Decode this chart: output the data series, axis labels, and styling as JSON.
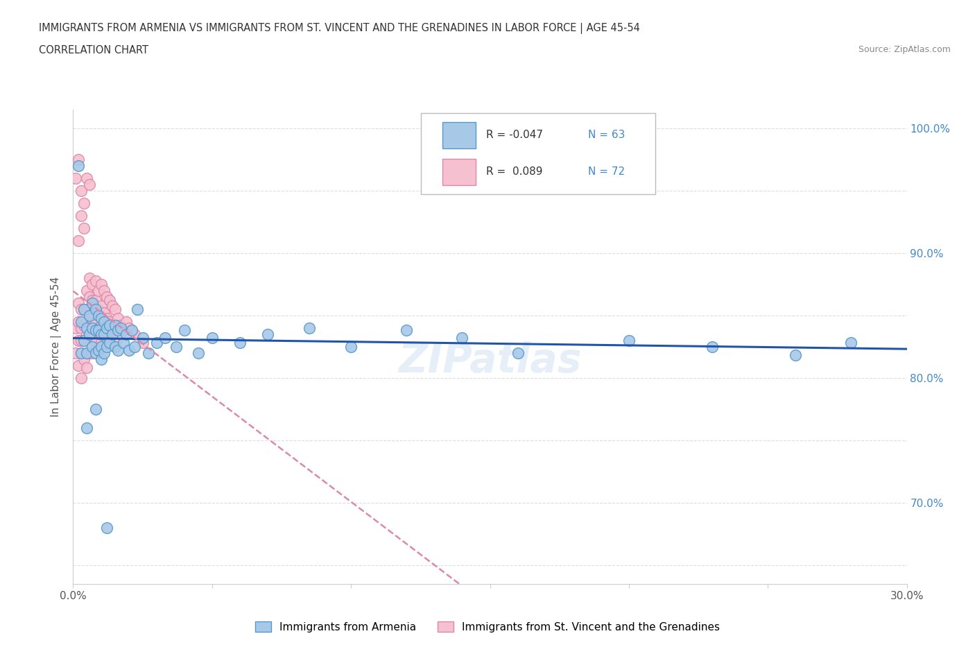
{
  "title_line1": "IMMIGRANTS FROM ARMENIA VS IMMIGRANTS FROM ST. VINCENT AND THE GRENADINES IN LABOR FORCE | AGE 45-54",
  "title_line2": "CORRELATION CHART",
  "source_text": "Source: ZipAtlas.com",
  "ylabel": "In Labor Force | Age 45-54",
  "xlim": [
    0.0,
    0.3
  ],
  "ylim": [
    0.635,
    1.015
  ],
  "xticks": [
    0.0,
    0.05,
    0.1,
    0.15,
    0.2,
    0.25,
    0.3
  ],
  "xticklabels": [
    "0.0%",
    "",
    "",
    "",
    "",
    "",
    "30.0%"
  ],
  "ytick_positions": [
    0.65,
    0.7,
    0.75,
    0.8,
    0.85,
    0.9,
    0.95,
    1.0
  ],
  "yticklabels_right": [
    "",
    "70.0%",
    "",
    "80.0%",
    "",
    "90.0%",
    "",
    "100.0%"
  ],
  "armenia_color": "#a8c8e8",
  "armenia_edge": "#5599cc",
  "stv_color": "#f5c0cf",
  "stv_edge": "#dd88aa",
  "trend_armenia_color": "#2255aa",
  "trend_stv_color": "#dd88aa",
  "r_armenia": -0.047,
  "n_armenia": 63,
  "r_stv": 0.089,
  "n_stv": 72,
  "armenia_x": [
    0.002,
    0.003,
    0.003,
    0.004,
    0.004,
    0.005,
    0.005,
    0.006,
    0.006,
    0.007,
    0.007,
    0.007,
    0.008,
    0.008,
    0.008,
    0.009,
    0.009,
    0.009,
    0.01,
    0.01,
    0.01,
    0.01,
    0.011,
    0.011,
    0.011,
    0.012,
    0.012,
    0.013,
    0.013,
    0.014,
    0.015,
    0.015,
    0.016,
    0.016,
    0.017,
    0.018,
    0.019,
    0.02,
    0.021,
    0.022,
    0.023,
    0.025,
    0.027,
    0.03,
    0.033,
    0.037,
    0.04,
    0.045,
    0.05,
    0.06,
    0.07,
    0.085,
    0.1,
    0.12,
    0.14,
    0.16,
    0.2,
    0.23,
    0.26,
    0.28,
    0.005,
    0.008,
    0.012
  ],
  "armenia_y": [
    0.97,
    0.845,
    0.82,
    0.855,
    0.83,
    0.84,
    0.82,
    0.85,
    0.835,
    0.86,
    0.84,
    0.825,
    0.855,
    0.838,
    0.82,
    0.85,
    0.838,
    0.822,
    0.848,
    0.835,
    0.825,
    0.815,
    0.845,
    0.835,
    0.82,
    0.84,
    0.825,
    0.842,
    0.828,
    0.835,
    0.842,
    0.825,
    0.838,
    0.822,
    0.84,
    0.828,
    0.835,
    0.822,
    0.838,
    0.825,
    0.855,
    0.832,
    0.82,
    0.828,
    0.832,
    0.825,
    0.838,
    0.82,
    0.832,
    0.828,
    0.835,
    0.84,
    0.825,
    0.838,
    0.832,
    0.82,
    0.83,
    0.825,
    0.818,
    0.828,
    0.76,
    0.775,
    0.68
  ],
  "stv_x": [
    0.001,
    0.001,
    0.002,
    0.002,
    0.002,
    0.002,
    0.003,
    0.003,
    0.003,
    0.003,
    0.003,
    0.004,
    0.004,
    0.004,
    0.004,
    0.005,
    0.005,
    0.005,
    0.005,
    0.005,
    0.005,
    0.006,
    0.006,
    0.006,
    0.006,
    0.006,
    0.007,
    0.007,
    0.007,
    0.007,
    0.007,
    0.008,
    0.008,
    0.008,
    0.008,
    0.009,
    0.009,
    0.009,
    0.009,
    0.01,
    0.01,
    0.01,
    0.01,
    0.011,
    0.011,
    0.011,
    0.012,
    0.012,
    0.012,
    0.013,
    0.013,
    0.014,
    0.014,
    0.015,
    0.015,
    0.016,
    0.016,
    0.017,
    0.018,
    0.019,
    0.02,
    0.022,
    0.025,
    0.002,
    0.003,
    0.003,
    0.004,
    0.004,
    0.005,
    0.006,
    0.001,
    0.002
  ],
  "stv_y": [
    0.84,
    0.82,
    0.86,
    0.845,
    0.83,
    0.81,
    0.855,
    0.84,
    0.83,
    0.82,
    0.8,
    0.855,
    0.842,
    0.83,
    0.815,
    0.87,
    0.855,
    0.845,
    0.835,
    0.82,
    0.808,
    0.88,
    0.865,
    0.85,
    0.835,
    0.82,
    0.875,
    0.862,
    0.848,
    0.835,
    0.82,
    0.878,
    0.862,
    0.845,
    0.828,
    0.87,
    0.855,
    0.84,
    0.825,
    0.875,
    0.858,
    0.842,
    0.828,
    0.87,
    0.852,
    0.835,
    0.865,
    0.848,
    0.832,
    0.862,
    0.845,
    0.858,
    0.84,
    0.855,
    0.838,
    0.848,
    0.832,
    0.842,
    0.838,
    0.845,
    0.84,
    0.835,
    0.828,
    0.91,
    0.95,
    0.93,
    0.94,
    0.92,
    0.96,
    0.955,
    0.96,
    0.975
  ],
  "bg_color": "#ffffff",
  "grid_color": "#dddddd",
  "legend_label_armenia": "Immigrants from Armenia",
  "legend_label_stv": "Immigrants from St. Vincent and the Grenadines",
  "title_color": "#333333",
  "axis_color": "#555555",
  "right_yaxis_color": "#4488cc",
  "watermark": "ZIPatlas"
}
